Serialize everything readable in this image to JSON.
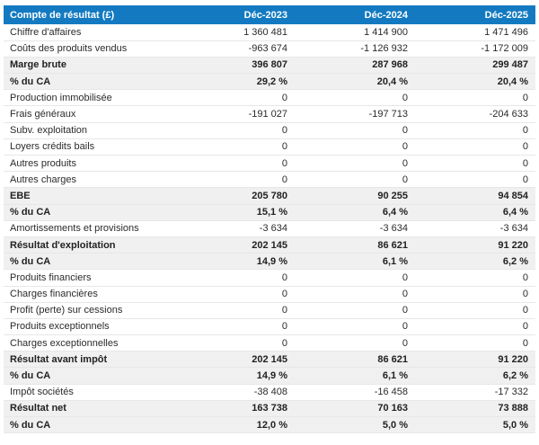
{
  "chart_data": {
    "type": "table",
    "title": "Compte de résultat (£)",
    "columns": [
      "Compte de résultat (£)",
      "Déc-2023",
      "Déc-2024",
      "Déc-2025"
    ],
    "rows": [
      {
        "label": "Chiffre d'affaires",
        "values": [
          "1 360 481",
          "1 414 900",
          "1 471 496"
        ],
        "emphasis": false
      },
      {
        "label": "Coûts des produits vendus",
        "values": [
          "-963 674",
          "-1 126 932",
          "-1 172 009"
        ],
        "emphasis": false
      },
      {
        "label": "Marge brute",
        "values": [
          "396 807",
          "287 968",
          "299 487"
        ],
        "emphasis": true
      },
      {
        "label": "% du CA",
        "values": [
          "29,2 %",
          "20,4 %",
          "20,4 %"
        ],
        "emphasis": true
      },
      {
        "label": "Production immobilisée",
        "values": [
          "0",
          "0",
          "0"
        ],
        "emphasis": false
      },
      {
        "label": "Frais généraux",
        "values": [
          "-191 027",
          "-197 713",
          "-204 633"
        ],
        "emphasis": false
      },
      {
        "label": "Subv. exploitation",
        "values": [
          "0",
          "0",
          "0"
        ],
        "emphasis": false
      },
      {
        "label": "Loyers crédits bails",
        "values": [
          "0",
          "0",
          "0"
        ],
        "emphasis": false
      },
      {
        "label": "Autres produits",
        "values": [
          "0",
          "0",
          "0"
        ],
        "emphasis": false
      },
      {
        "label": "Autres charges",
        "values": [
          "0",
          "0",
          "0"
        ],
        "emphasis": false
      },
      {
        "label": "EBE",
        "values": [
          "205 780",
          "90 255",
          "94 854"
        ],
        "emphasis": true
      },
      {
        "label": "% du CA",
        "values": [
          "15,1 %",
          "6,4 %",
          "6,4 %"
        ],
        "emphasis": true
      },
      {
        "label": "Amortissements et provisions",
        "values": [
          "-3 634",
          "-3 634",
          "-3 634"
        ],
        "emphasis": false
      },
      {
        "label": "Résultat d'exploitation",
        "values": [
          "202 145",
          "86 621",
          "91 220"
        ],
        "emphasis": true
      },
      {
        "label": "% du CA",
        "values": [
          "14,9 %",
          "6,1 %",
          "6,2 %"
        ],
        "emphasis": true
      },
      {
        "label": "Produits financiers",
        "values": [
          "0",
          "0",
          "0"
        ],
        "emphasis": false
      },
      {
        "label": "Charges financières",
        "values": [
          "0",
          "0",
          "0"
        ],
        "emphasis": false
      },
      {
        "label": "Profit (perte) sur cessions",
        "values": [
          "0",
          "0",
          "0"
        ],
        "emphasis": false
      },
      {
        "label": "Produits exceptionnels",
        "values": [
          "0",
          "0",
          "0"
        ],
        "emphasis": false
      },
      {
        "label": "Charges exceptionnelles",
        "values": [
          "0",
          "0",
          "0"
        ],
        "emphasis": false
      },
      {
        "label": "Résultat avant impôt",
        "values": [
          "202 145",
          "86 621",
          "91 220"
        ],
        "emphasis": true
      },
      {
        "label": "% du CA",
        "values": [
          "14,9 %",
          "6,1 %",
          "6,2 %"
        ],
        "emphasis": true
      },
      {
        "label": "Impôt sociétés",
        "values": [
          "-38 408",
          "-16 458",
          "-17 332"
        ],
        "emphasis": false
      },
      {
        "label": "Résultat net",
        "values": [
          "163 738",
          "70 163",
          "73 888"
        ],
        "emphasis": true
      },
      {
        "label": "% du CA",
        "values": [
          "12,0 %",
          "5,0 %",
          "5,0 %"
        ],
        "emphasis": true
      }
    ]
  },
  "colors": {
    "header_bg": "#137ac1",
    "header_text": "#ffffff",
    "row_emphasis_bg": "#f0f0f0",
    "row_bg": "#ffffff",
    "border": "#e7e7e7",
    "text": "#2b2b2b"
  }
}
